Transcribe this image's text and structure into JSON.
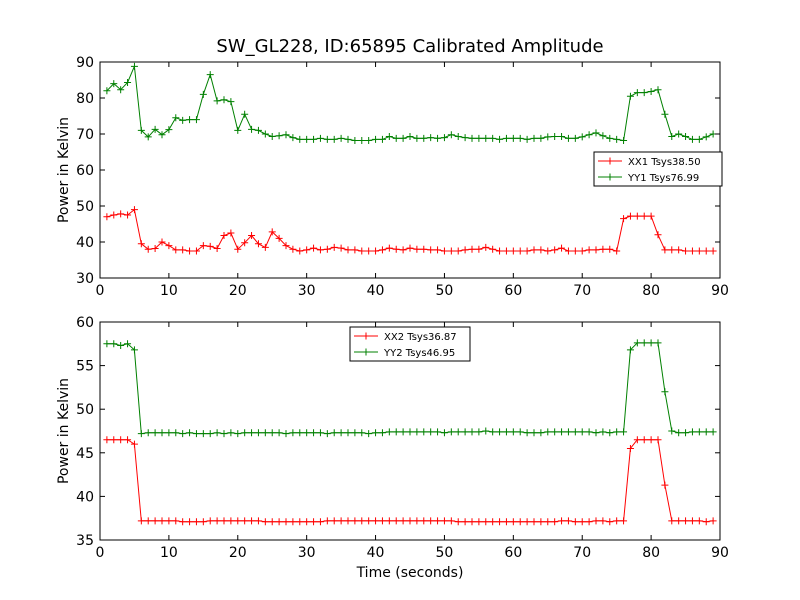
{
  "figure_title": "SW_GL228, ID:65895 Calibrated Amplitude",
  "chart_data": [
    {
      "type": "line",
      "title": "SW_GL228, ID:65895 Calibrated Amplitude",
      "xlabel": "",
      "ylabel": "Power in Kelvin",
      "xlim": [
        0,
        90
      ],
      "ylim": [
        30,
        90
      ],
      "xticks": [
        "0",
        "10",
        "20",
        "30",
        "40",
        "50",
        "60",
        "70",
        "80",
        "90"
      ],
      "yticks": [
        "30",
        "40",
        "50",
        "60",
        "70",
        "80",
        "90"
      ],
      "grid": false,
      "legend_position": "right",
      "x": [
        1,
        2,
        3,
        4,
        5,
        6,
        7,
        8,
        9,
        10,
        11,
        12,
        13,
        14,
        15,
        16,
        17,
        18,
        19,
        20,
        21,
        22,
        23,
        24,
        25,
        26,
        27,
        28,
        29,
        30,
        31,
        32,
        33,
        34,
        35,
        36,
        37,
        38,
        39,
        40,
        41,
        42,
        43,
        44,
        45,
        46,
        47,
        48,
        49,
        50,
        51,
        52,
        53,
        54,
        55,
        56,
        57,
        58,
        59,
        60,
        61,
        62,
        63,
        64,
        65,
        66,
        67,
        68,
        69,
        70,
        71,
        72,
        73,
        74,
        75,
        76,
        77,
        78,
        79,
        80,
        81,
        82,
        83,
        84,
        85,
        86,
        87,
        88,
        89
      ],
      "series": [
        {
          "name": "XX1 Tsys38.50",
          "color": "#ff0000",
          "values": [
            47,
            47.5,
            47.8,
            47.5,
            49,
            39.5,
            38,
            38.2,
            40,
            39,
            37.8,
            37.8,
            37.5,
            37.5,
            39,
            38.8,
            38.2,
            41.8,
            42.5,
            38,
            39.8,
            41.8,
            39.5,
            38.5,
            42.8,
            41,
            39,
            38,
            37.5,
            37.8,
            38.3,
            37.8,
            38,
            38.5,
            38.3,
            37.8,
            37.8,
            37.5,
            37.5,
            37.5,
            37.8,
            38.3,
            38,
            37.8,
            38.3,
            38,
            38,
            37.8,
            37.8,
            37.5,
            37.5,
            37.5,
            37.8,
            38,
            38,
            38.5,
            38,
            37.5,
            37.5,
            37.5,
            37.5,
            37.5,
            37.8,
            37.8,
            37.5,
            37.8,
            38.3,
            37.5,
            37.5,
            37.5,
            37.8,
            37.8,
            38,
            38,
            37.5,
            46.5,
            47.2,
            47.2,
            47.2,
            47.2,
            42,
            37.8,
            37.8,
            37.8,
            37.5,
            37.5,
            37.5,
            37.5,
            37.5
          ]
        },
        {
          "name": "YY1 Tsys76.99",
          "color": "#008000",
          "values": [
            82,
            84,
            82.3,
            84.3,
            88.8,
            71,
            69.2,
            71.3,
            69.8,
            71.2,
            74.5,
            73.8,
            74,
            74,
            81,
            86.5,
            79.2,
            79.5,
            79,
            71,
            75.5,
            71.3,
            71,
            70,
            69.3,
            69.5,
            69.8,
            69,
            68.5,
            68.5,
            68.5,
            68.8,
            68.5,
            68.5,
            68.8,
            68.5,
            68.2,
            68.2,
            68.2,
            68.5,
            68.5,
            69.3,
            68.8,
            68.8,
            69.3,
            68.8,
            68.8,
            69,
            68.8,
            69,
            69.8,
            69.3,
            69,
            68.8,
            68.8,
            68.8,
            68.8,
            68.5,
            68.8,
            68.8,
            68.8,
            68.5,
            68.8,
            68.8,
            69.2,
            69.3,
            69.3,
            68.8,
            68.8,
            69.2,
            69.8,
            70.3,
            69.5,
            68.8,
            68.5,
            68.2,
            80.5,
            81.5,
            81.5,
            81.8,
            82.3,
            75.5,
            69.3,
            70,
            69.3,
            68.5,
            68.5,
            69.2,
            70
          ]
        }
      ]
    },
    {
      "type": "line",
      "title": "",
      "xlabel": "Time (seconds)",
      "ylabel": "Power in Kelvin",
      "xlim": [
        0,
        90
      ],
      "ylim": [
        35,
        60
      ],
      "xticks": [
        "0",
        "10",
        "20",
        "30",
        "40",
        "50",
        "60",
        "70",
        "80",
        "90"
      ],
      "yticks": [
        "35",
        "40",
        "45",
        "50",
        "55",
        "60"
      ],
      "grid": false,
      "legend_position": "upper center",
      "x": [
        1,
        2,
        3,
        4,
        5,
        6,
        7,
        8,
        9,
        10,
        11,
        12,
        13,
        14,
        15,
        16,
        17,
        18,
        19,
        20,
        21,
        22,
        23,
        24,
        25,
        26,
        27,
        28,
        29,
        30,
        31,
        32,
        33,
        34,
        35,
        36,
        37,
        38,
        39,
        40,
        41,
        42,
        43,
        44,
        45,
        46,
        47,
        48,
        49,
        50,
        51,
        52,
        53,
        54,
        55,
        56,
        57,
        58,
        59,
        60,
        61,
        62,
        63,
        64,
        65,
        66,
        67,
        68,
        69,
        70,
        71,
        72,
        73,
        74,
        75,
        76,
        77,
        78,
        79,
        80,
        81,
        82,
        83,
        84,
        85,
        86,
        87,
        88,
        89
      ],
      "series": [
        {
          "name": "XX2 Tsys36.87",
          "color": "#ff0000",
          "values": [
            46.5,
            46.5,
            46.5,
            46.5,
            46,
            37.2,
            37.2,
            37.2,
            37.2,
            37.2,
            37.2,
            37.1,
            37.1,
            37.1,
            37.1,
            37.2,
            37.2,
            37.2,
            37.2,
            37.2,
            37.2,
            37.2,
            37.2,
            37.1,
            37.1,
            37.1,
            37.1,
            37.1,
            37.1,
            37.1,
            37.1,
            37.1,
            37.2,
            37.2,
            37.2,
            37.2,
            37.2,
            37.2,
            37.2,
            37.2,
            37.2,
            37.2,
            37.2,
            37.2,
            37.2,
            37.2,
            37.2,
            37.2,
            37.2,
            37.2,
            37.2,
            37.1,
            37.1,
            37.1,
            37.1,
            37.1,
            37.1,
            37.1,
            37.1,
            37.1,
            37.1,
            37.1,
            37.1,
            37.1,
            37.1,
            37.1,
            37.2,
            37.2,
            37.1,
            37.1,
            37.1,
            37.2,
            37.2,
            37.1,
            37.2,
            37.2,
            45.5,
            46.5,
            46.5,
            46.5,
            46.5,
            41.3,
            37.2,
            37.2,
            37.2,
            37.2,
            37.2,
            37.1,
            37.2
          ]
        },
        {
          "name": "YY2 Tsys46.95",
          "color": "#008000",
          "values": [
            57.5,
            57.5,
            57.3,
            57.5,
            56.8,
            47.2,
            47.3,
            47.3,
            47.3,
            47.3,
            47.3,
            47.2,
            47.3,
            47.2,
            47.2,
            47.2,
            47.3,
            47.2,
            47.3,
            47.2,
            47.3,
            47.3,
            47.3,
            47.3,
            47.3,
            47.3,
            47.2,
            47.3,
            47.3,
            47.3,
            47.3,
            47.3,
            47.2,
            47.3,
            47.3,
            47.3,
            47.3,
            47.3,
            47.2,
            47.3,
            47.3,
            47.4,
            47.4,
            47.4,
            47.4,
            47.4,
            47.4,
            47.4,
            47.4,
            47.3,
            47.4,
            47.4,
            47.4,
            47.4,
            47.4,
            47.5,
            47.4,
            47.4,
            47.4,
            47.4,
            47.4,
            47.3,
            47.3,
            47.3,
            47.4,
            47.4,
            47.4,
            47.4,
            47.4,
            47.4,
            47.4,
            47.3,
            47.4,
            47.3,
            47.4,
            47.4,
            56.8,
            57.6,
            57.6,
            57.6,
            57.6,
            52,
            47.5,
            47.3,
            47.3,
            47.4,
            47.4,
            47.4,
            47.4
          ]
        }
      ]
    }
  ]
}
